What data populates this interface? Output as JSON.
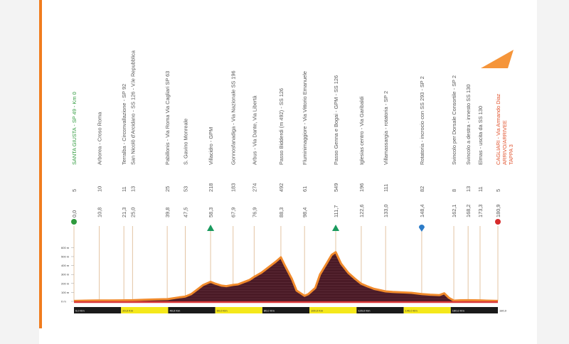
{
  "chart_data": {
    "type": "area",
    "title": "",
    "y_tick_labels": [
      "600 m",
      "500 m",
      "400 m",
      "300 m",
      "200 m",
      "100 m",
      "0 m"
    ],
    "ylim": [
      0,
      650
    ],
    "xlim": [
      0,
      180.9
    ],
    "km_labels": [
      "0,0 Km",
      "20,0 Km",
      "40,0 Km",
      "60,0 Km",
      "80,0 Km",
      "100,0 Km",
      "120,0 Km",
      "140,0 Km",
      "160,0 Km",
      "180,9"
    ],
    "profile": [
      [
        0,
        5
      ],
      [
        5,
        8
      ],
      [
        10,
        10
      ],
      [
        15,
        10
      ],
      [
        20,
        11
      ],
      [
        25,
        13
      ],
      [
        30,
        18
      ],
      [
        35,
        22
      ],
      [
        40,
        25
      ],
      [
        45,
        45
      ],
      [
        47.5,
        53
      ],
      [
        50,
        80
      ],
      [
        53,
        140
      ],
      [
        55,
        180
      ],
      [
        58.3,
        218
      ],
      [
        60,
        200
      ],
      [
        63,
        175
      ],
      [
        65,
        170
      ],
      [
        67.9,
        183
      ],
      [
        70,
        190
      ],
      [
        73,
        220
      ],
      [
        75,
        240
      ],
      [
        76.9,
        274
      ],
      [
        80,
        320
      ],
      [
        83,
        380
      ],
      [
        86,
        440
      ],
      [
        88.3,
        492
      ],
      [
        90,
        400
      ],
      [
        93,
        250
      ],
      [
        95,
        120
      ],
      [
        98.4,
        61
      ],
      [
        100,
        80
      ],
      [
        103,
        150
      ],
      [
        105,
        300
      ],
      [
        108,
        430
      ],
      [
        110,
        520
      ],
      [
        111.7,
        549
      ],
      [
        114,
        420
      ],
      [
        117,
        320
      ],
      [
        120,
        250
      ],
      [
        122.6,
        196
      ],
      [
        125,
        170
      ],
      [
        128,
        140
      ],
      [
        133,
        111
      ],
      [
        136,
        105
      ],
      [
        140,
        100
      ],
      [
        144,
        95
      ],
      [
        148.4,
        82
      ],
      [
        152,
        75
      ],
      [
        156,
        70
      ],
      [
        158,
        90
      ],
      [
        160,
        40
      ],
      [
        162.1,
        8
      ],
      [
        165,
        12
      ],
      [
        168.2,
        13
      ],
      [
        171,
        12
      ],
      [
        173.3,
        11
      ],
      [
        176,
        8
      ],
      [
        180.9,
        5
      ]
    ],
    "points": [
      {
        "km": "0,0",
        "alt": "5",
        "name": "SANTA GIUSTA - SP 49 - Km 0",
        "marker": "start"
      },
      {
        "km": "10,8",
        "alt": "10",
        "name": "Arborea - Croso Roma"
      },
      {
        "km": "21,3",
        "alt": "11",
        "name": "Terralba - Circonvallazione - SP 92"
      },
      {
        "km": "25,0",
        "alt": "13",
        "name": "San Nicolò d'Arcidano - SS 126 - V.le Repubblica"
      },
      {
        "km": "39,8",
        "alt": "25",
        "name": "Pabillonis - Via Roma Via Cagliari SP 63"
      },
      {
        "km": "47,5",
        "alt": "53",
        "name": "S. Gavino Monreale"
      },
      {
        "km": "58,3",
        "alt": "218",
        "name": "Villacidro - GPM",
        "marker": "gpm"
      },
      {
        "km": "67,9",
        "alt": "183",
        "name": "Gonnosfanadiga - Via Nazionale SS 196"
      },
      {
        "km": "76,9",
        "alt": "274",
        "name": "Arbus - Via Dante, Via Libertà"
      },
      {
        "km": "88,3",
        "alt": "492",
        "name": "Passo Bidderdi (m 492) - SS 126"
      },
      {
        "km": "98,4",
        "alt": "61",
        "name": "Fluminimaggiore - Via Vittorio Emanuele"
      },
      {
        "km": "111,7",
        "alt": "549",
        "name": "Passo Genna e Bogai - GPM - SS 126",
        "marker": "gpm"
      },
      {
        "km": "122,6",
        "alt": "196",
        "name": "Iglesias centro - Via Garibaldi"
      },
      {
        "km": "133,0",
        "alt": "111",
        "name": "Villamassargia - rotatoria - SP 2"
      },
      {
        "km": "148,4",
        "alt": "82",
        "name": "Rotatoria - incrocio con SS 293 - SP 2",
        "marker": "feed"
      },
      {
        "km": "162,1",
        "alt": "8",
        "name": "Svincolo per Dorsale Consortile - SP 2"
      },
      {
        "km": "168,2",
        "alt": "13",
        "name": "Svincolo a destra - innesto SS 130"
      },
      {
        "km": "173,3",
        "alt": "11",
        "name": "Elmas - uscita da SS 130"
      },
      {
        "km": "180,9",
        "alt": "5",
        "name": "CAGLIARI - Via Armando Diaz",
        "marker": "finish"
      }
    ],
    "finish_label": "ARRIVO/ARRIVEE",
    "stage_label": "TAPPA 3"
  },
  "colors": {
    "fill": "#4a1a26",
    "outline": "#f08a2c",
    "guide": "#e3c4a3",
    "gpm": "#1a9a5e",
    "feed": "#2d7cc8",
    "start": "#2f9a3d",
    "finish": "#d62b2b",
    "accent": "#f07c1e",
    "ground": "#d9383a"
  }
}
